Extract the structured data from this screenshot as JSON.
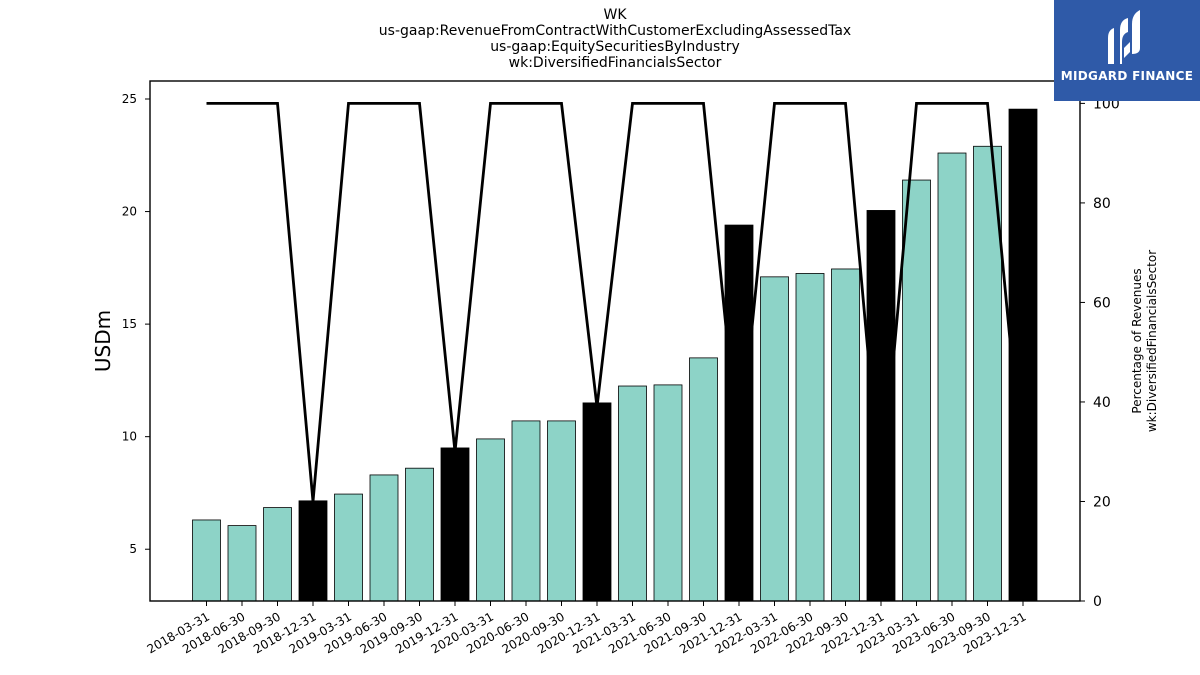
{
  "brand": {
    "name": "MIDGARD FINANCE",
    "color": "#2f5aa8"
  },
  "chart_data": {
    "type": "bar",
    "title_lines": [
      "WK",
      "us-gaap:RevenueFromContractWithCustomerExcludingAssessedTax",
      "us-gaap:EquitySecuritiesByIndustry",
      "wk:DiversifiedFinancialsSector"
    ],
    "ylabel_left": "USDm",
    "ylabel_right": [
      "Percentage of Revenues",
      "wk:DiversifiedFinancialsSector"
    ],
    "y_left_lim": [
      2.7,
      25.8
    ],
    "y_left_ticks": [
      5,
      10,
      15,
      20,
      25
    ],
    "y_right_lim": [
      0,
      104.5
    ],
    "y_right_ticks": [
      0,
      20,
      40,
      60,
      80,
      100
    ],
    "categories": [
      "2018-03-31",
      "2018-06-30",
      "2018-09-30",
      "2018-12-31",
      "2019-03-31",
      "2019-06-30",
      "2019-09-30",
      "2019-12-31",
      "2020-03-31",
      "2020-06-30",
      "2020-09-30",
      "2020-12-31",
      "2021-03-31",
      "2021-06-30",
      "2021-09-30",
      "2021-12-31",
      "2022-03-31",
      "2022-06-30",
      "2022-09-30",
      "2022-12-31",
      "2023-03-31",
      "2023-06-30",
      "2023-09-30",
      "2023-12-31"
    ],
    "series": [
      {
        "type": "bar",
        "axis": "left",
        "values": [
          6.3,
          6.05,
          6.85,
          7.15,
          7.45,
          8.3,
          8.6,
          9.5,
          9.9,
          10.7,
          10.7,
          11.5,
          12.25,
          12.3,
          13.5,
          19.4,
          17.1,
          17.25,
          17.45,
          20.05,
          21.4,
          22.6,
          22.9,
          24.55
        ],
        "highlight_indices": [
          3,
          7,
          11,
          15,
          19,
          23
        ],
        "color": "#8dd3c7",
        "highlight_color": "#000000"
      },
      {
        "type": "line",
        "axis": "right",
        "values": [
          100,
          100,
          100,
          20,
          100,
          100,
          100,
          30,
          100,
          100,
          100,
          39,
          100,
          100,
          100,
          29,
          100,
          100,
          100,
          21,
          100,
          100,
          100,
          25
        ],
        "color": "#000000"
      }
    ],
    "grid": false,
    "legend": "none"
  }
}
